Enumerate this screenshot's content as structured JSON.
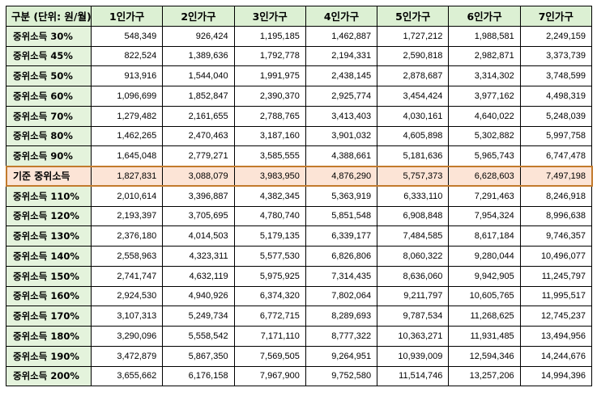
{
  "table": {
    "headers": [
      "구분 (단위: 원/월)",
      "1인가구",
      "2인가구",
      "3인가구",
      "4인가구",
      "5인가구",
      "6인가구",
      "7인가구"
    ],
    "highlight_row": "기준 중위소득",
    "rows": [
      {
        "label": "중위소득  30%",
        "values": [
          "548,349",
          "926,424",
          "1,195,185",
          "1,462,887",
          "1,727,212",
          "1,988,581",
          "2,249,159"
        ]
      },
      {
        "label": "중위소득  45%",
        "values": [
          "822,524",
          "1,389,636",
          "1,792,778",
          "2,194,331",
          "2,590,818",
          "2,982,871",
          "3,373,739"
        ]
      },
      {
        "label": "중위소득  50%",
        "values": [
          "913,916",
          "1,544,040",
          "1,991,975",
          "2,438,145",
          "2,878,687",
          "3,314,302",
          "3,748,599"
        ]
      },
      {
        "label": "중위소득  60%",
        "values": [
          "1,096,699",
          "1,852,847",
          "2,390,370",
          "2,925,774",
          "3,454,424",
          "3,977,162",
          "4,498,319"
        ]
      },
      {
        "label": "중위소득  70%",
        "values": [
          "1,279,482",
          "2,161,655",
          "2,788,765",
          "3,413,403",
          "4,030,161",
          "4,640,022",
          "5,248,039"
        ]
      },
      {
        "label": "중위소득  80%",
        "values": [
          "1,462,265",
          "2,470,463",
          "3,187,160",
          "3,901,032",
          "4,605,898",
          "5,302,882",
          "5,997,758"
        ]
      },
      {
        "label": "중위소득  90%",
        "values": [
          "1,645,048",
          "2,779,271",
          "3,585,555",
          "4,388,661",
          "5,181,636",
          "5,965,743",
          "6,747,478"
        ]
      },
      {
        "label": "기준 중위소득",
        "values": [
          "1,827,831",
          "3,088,079",
          "3,983,950",
          "4,876,290",
          "5,757,373",
          "6,628,603",
          "7,497,198"
        ]
      },
      {
        "label": "중위소득 110%",
        "values": [
          "2,010,614",
          "3,396,887",
          "4,382,345",
          "5,363,919",
          "6,333,110",
          "7,291,463",
          "8,246,918"
        ]
      },
      {
        "label": "중위소득 120%",
        "values": [
          "2,193,397",
          "3,705,695",
          "4,780,740",
          "5,851,548",
          "6,908,848",
          "7,954,324",
          "8,996,638"
        ]
      },
      {
        "label": "중위소득 130%",
        "values": [
          "2,376,180",
          "4,014,503",
          "5,179,135",
          "6,339,177",
          "7,484,585",
          "8,617,184",
          "9,746,357"
        ]
      },
      {
        "label": "중위소득 140%",
        "values": [
          "2,558,963",
          "4,323,311",
          "5,577,530",
          "6,826,806",
          "8,060,322",
          "9,280,044",
          "10,496,077"
        ]
      },
      {
        "label": "중위소득 150%",
        "values": [
          "2,741,747",
          "4,632,119",
          "5,975,925",
          "7,314,435",
          "8,636,060",
          "9,942,905",
          "11,245,797"
        ]
      },
      {
        "label": "중위소득 160%",
        "values": [
          "2,924,530",
          "4,940,926",
          "6,374,320",
          "7,802,064",
          "9,211,797",
          "10,605,765",
          "11,995,517"
        ]
      },
      {
        "label": "중위소득 170%",
        "values": [
          "3,107,313",
          "5,249,734",
          "6,772,715",
          "8,289,693",
          "9,787,534",
          "11,268,625",
          "12,745,237"
        ]
      },
      {
        "label": "중위소득 180%",
        "values": [
          "3,290,096",
          "5,558,542",
          "7,171,110",
          "8,777,322",
          "10,363,271",
          "11,931,485",
          "13,494,956"
        ]
      },
      {
        "label": "중위소득 190%",
        "values": [
          "3,472,879",
          "5,867,350",
          "7,569,505",
          "9,264,951",
          "10,939,009",
          "12,594,346",
          "14,244,676"
        ]
      },
      {
        "label": "중위소득 200%",
        "values": [
          "3,655,662",
          "6,176,158",
          "7,967,900",
          "9,752,580",
          "11,514,746",
          "13,257,206",
          "14,994,396"
        ]
      }
    ]
  },
  "colors": {
    "header_bg": "#dcf0d3",
    "highlight_bg": "#fce4d6",
    "highlight_border": "#c27a2c"
  }
}
